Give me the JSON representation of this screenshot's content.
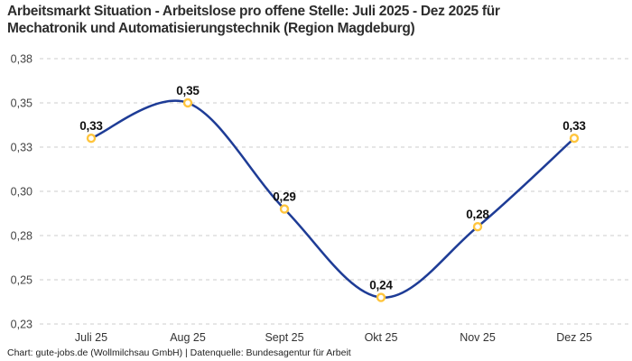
{
  "title": {
    "lines": [
      "Arbeitsmarkt Situation - Arbeitslose pro offene Stelle: Juli 2025 - Dez 2025 für",
      "Mechatronik und Automatisierungstechnik (Region Magdeburg)"
    ]
  },
  "footer": {
    "text": "Chart: gute-jobs.de (Wollmilchsau GmbH) | Datenquelle: Bundesagentur für Arbeit"
  },
  "chart_data": {
    "type": "line",
    "categories": [
      "Juli 25",
      "Aug 25",
      "Sept 25",
      "Okt 25",
      "Nov 25",
      "Dez 25"
    ],
    "values": [
      0.33,
      0.35,
      0.29,
      0.24,
      0.28,
      0.33
    ],
    "point_labels": [
      "0,33",
      "0,35",
      "0,29",
      "0,24",
      "0,28",
      "0,33"
    ],
    "y_ticks": [
      {
        "label": "0,38",
        "value": 0.375
      },
      {
        "label": "0,35",
        "value": 0.35
      },
      {
        "label": "0,33",
        "value": 0.325
      },
      {
        "label": "0,30",
        "value": 0.3
      },
      {
        "label": "0,28",
        "value": 0.275
      },
      {
        "label": "0,25",
        "value": 0.25
      },
      {
        "label": "0,23",
        "value": 0.225
      }
    ],
    "ylim": [
      0.225,
      0.375
    ],
    "grid": "dashed-horizontal",
    "legend": "none",
    "curve": "smooth",
    "colors": {
      "line": "#1e3c96",
      "point_ring": "#ffc53d",
      "point_fill": "#ffffff",
      "grid": "#cccccc"
    }
  }
}
